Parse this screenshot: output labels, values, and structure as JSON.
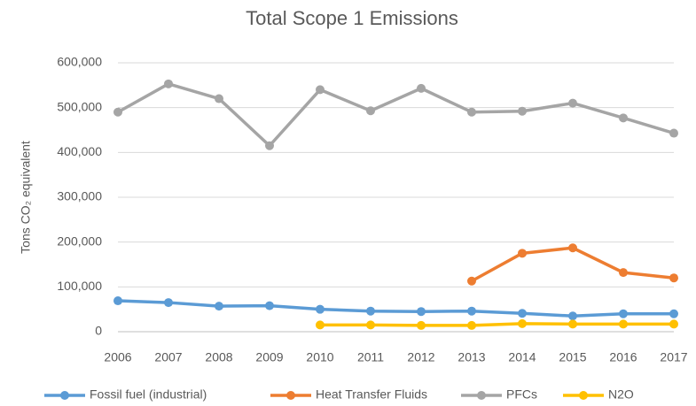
{
  "chart_data": {
    "type": "line",
    "title": "Total Scope 1 Emissions",
    "y_label": "Tons CO₂ equivalent",
    "categories": [
      "2006",
      "2007",
      "2008",
      "2009",
      "2010",
      "2011",
      "2012",
      "2013",
      "2014",
      "2015",
      "2016",
      "2017"
    ],
    "series": [
      {
        "name": "Fossil fuel (industrial)",
        "color": "#5b9bd5",
        "values": [
          69000,
          65000,
          57000,
          58000,
          50000,
          46000,
          45000,
          46000,
          41000,
          35000,
          40000,
          40000
        ]
      },
      {
        "name": "Heat Transfer Fluids",
        "color": "#ed7d31",
        "values": [
          null,
          null,
          null,
          null,
          null,
          null,
          null,
          113000,
          175000,
          187000,
          132000,
          120000
        ]
      },
      {
        "name": "PFCs",
        "color": "#a5a5a5",
        "values": [
          490000,
          553000,
          520000,
          415000,
          540000,
          493000,
          543000,
          490000,
          492000,
          510000,
          477000,
          443000
        ]
      },
      {
        "name": "N2O",
        "color": "#ffc000",
        "values": [
          null,
          null,
          null,
          null,
          15000,
          15000,
          14000,
          14000,
          18000,
          17000,
          17000,
          17000
        ]
      }
    ],
    "ylim": [
      0,
      600000
    ],
    "yticks": [
      0,
      {
        "value": 100000,
        "label": "100,000"
      },
      {
        "value": 200000,
        "label": "200,000"
      },
      {
        "value": 300000,
        "label": "300,000"
      },
      {
        "value": 400000,
        "label": "400,000"
      },
      {
        "value": 500000,
        "label": "500,000"
      },
      {
        "value": 600000,
        "label": "600,000"
      }
    ],
    "grid": true,
    "legend": "bottom"
  }
}
